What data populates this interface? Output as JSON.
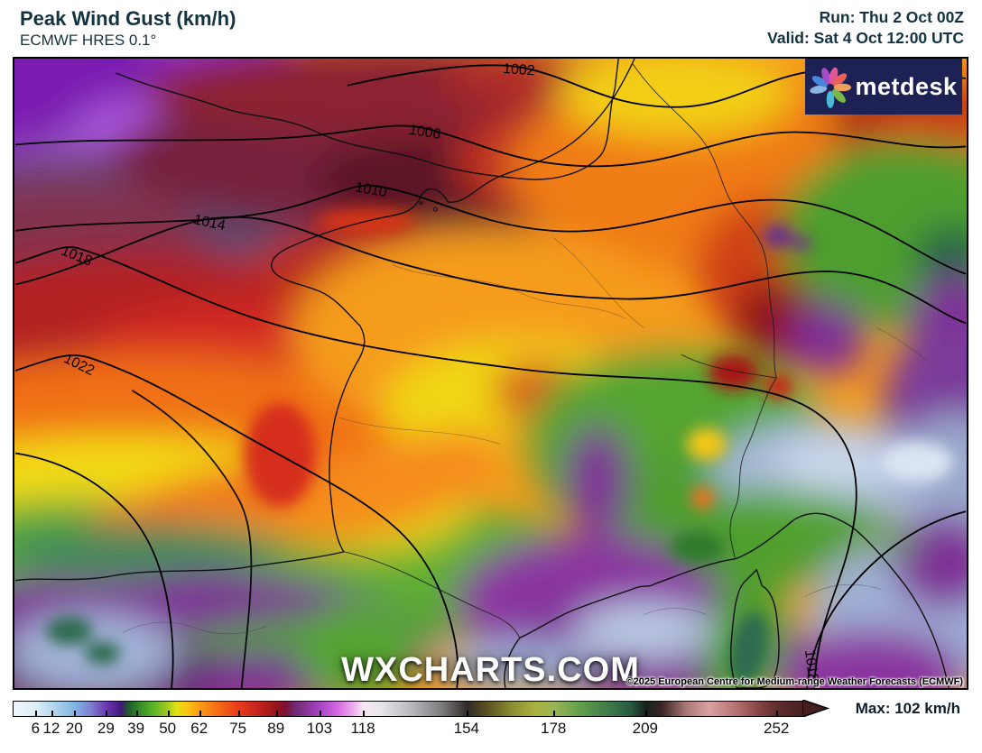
{
  "header": {
    "title": "Peak Wind Gust (km/h)",
    "subtitle": "ECMWF HRES 0.1°",
    "run_line": "Run: Thu 2 Oct 00Z",
    "valid_line": "Valid: Sat 4 Oct 12:00 UTC",
    "text_color": "#143340"
  },
  "map": {
    "watermark": "WXCHARTS.COM",
    "copyright": "©2025 European Centre for Medium-range Weather Forecasts (ECMWF)",
    "logo": {
      "text": "metdesk",
      "bg_color": "#1d2153",
      "icon": "pinwheel-flower-icon"
    },
    "isobars": [
      {
        "label": "1002"
      },
      {
        "label": "1006"
      },
      {
        "label": "1010"
      },
      {
        "label": "1014"
      },
      {
        "label": "1018"
      },
      {
        "label": "1022"
      },
      {
        "label": "1018"
      }
    ]
  },
  "colorbar": {
    "max_label": "Max: 102 km/h",
    "arrow_color": "#452020",
    "ticks": [
      {
        "value": "6",
        "pct": 2.9
      },
      {
        "value": "12",
        "pct": 4.9
      },
      {
        "value": "20",
        "pct": 7.8
      },
      {
        "value": "29",
        "pct": 11.8
      },
      {
        "value": "39",
        "pct": 15.6
      },
      {
        "value": "50",
        "pct": 19.6
      },
      {
        "value": "62",
        "pct": 23.6
      },
      {
        "value": "75",
        "pct": 28.5
      },
      {
        "value": "89",
        "pct": 33.3
      },
      {
        "value": "103",
        "pct": 38.8
      },
      {
        "value": "118",
        "pct": 44.3
      },
      {
        "value": "154",
        "pct": 57.4
      },
      {
        "value": "178",
        "pct": 68.4
      },
      {
        "value": "209",
        "pct": 80.0
      },
      {
        "value": "252",
        "pct": 96.6
      }
    ],
    "palette": [
      {
        "pct": 0,
        "color": "#eff6fb"
      },
      {
        "pct": 2.9,
        "color": "#dcedf8"
      },
      {
        "pct": 4.9,
        "color": "#b5d8ef"
      },
      {
        "pct": 7.8,
        "color": "#80b3e2"
      },
      {
        "pct": 9.8,
        "color": "#7e7ed0"
      },
      {
        "pct": 11.8,
        "color": "#6a35b0"
      },
      {
        "pct": 13.6,
        "color": "#41197a"
      },
      {
        "pct": 14.4,
        "color": "#205132"
      },
      {
        "pct": 15.6,
        "color": "#2f8128"
      },
      {
        "pct": 17.6,
        "color": "#58b22a"
      },
      {
        "pct": 19.6,
        "color": "#a6cd1e"
      },
      {
        "pct": 20.6,
        "color": "#e3e012"
      },
      {
        "pct": 22.0,
        "color": "#fbc313"
      },
      {
        "pct": 23.6,
        "color": "#f99b12"
      },
      {
        "pct": 26.0,
        "color": "#f46915"
      },
      {
        "pct": 28.5,
        "color": "#e93a1c"
      },
      {
        "pct": 31.0,
        "color": "#c2231d"
      },
      {
        "pct": 33.3,
        "color": "#93141b"
      },
      {
        "pct": 34.4,
        "color": "#7c1034"
      },
      {
        "pct": 35.6,
        "color": "#6f2a72"
      },
      {
        "pct": 38.8,
        "color": "#a844c4"
      },
      {
        "pct": 41.0,
        "color": "#d66ae0"
      },
      {
        "pct": 43.0,
        "color": "#efaeec"
      },
      {
        "pct": 44.3,
        "color": "#f8e7f6"
      },
      {
        "pct": 46.5,
        "color": "#e6e6e8"
      },
      {
        "pct": 50.0,
        "color": "#bdbdbf"
      },
      {
        "pct": 54.0,
        "color": "#808082"
      },
      {
        "pct": 57.4,
        "color": "#2f2b27"
      },
      {
        "pct": 59.5,
        "color": "#554a20"
      },
      {
        "pct": 63.0,
        "color": "#8b8c30"
      },
      {
        "pct": 66.0,
        "color": "#aab23f"
      },
      {
        "pct": 68.4,
        "color": "#9ab554"
      },
      {
        "pct": 71.5,
        "color": "#63a04c"
      },
      {
        "pct": 75.0,
        "color": "#417e4b"
      },
      {
        "pct": 78.0,
        "color": "#2b5a41"
      },
      {
        "pct": 80.0,
        "color": "#16211c"
      },
      {
        "pct": 82.0,
        "color": "#3a2626"
      },
      {
        "pct": 85.0,
        "color": "#a87676"
      },
      {
        "pct": 88.0,
        "color": "#d9a2a2"
      },
      {
        "pct": 91.0,
        "color": "#b97777"
      },
      {
        "pct": 94.0,
        "color": "#8a4848"
      },
      {
        "pct": 96.6,
        "color": "#5f2c2c"
      },
      {
        "pct": 100,
        "color": "#452020"
      }
    ]
  }
}
